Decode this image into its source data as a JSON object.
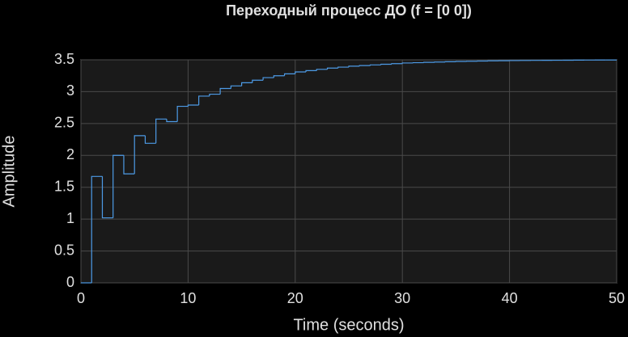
{
  "chart_data": {
    "type": "stairs",
    "title": "Переходный процесс ДО (f = [0 0])",
    "x_label": "Time (seconds)",
    "y_label": "Amplitude",
    "x": [
      0,
      1,
      2,
      3,
      4,
      5,
      6,
      7,
      8,
      9,
      10,
      11,
      12,
      13,
      14,
      15,
      16,
      17,
      18,
      19,
      20,
      21,
      22,
      23,
      24,
      25,
      26,
      27,
      28,
      29,
      30,
      31,
      32,
      33,
      34,
      35,
      36,
      37,
      38,
      39,
      40,
      41,
      42,
      43,
      44,
      45,
      46,
      47,
      48,
      49,
      50
    ],
    "series": [
      {
        "color": "#4d9be6",
        "values": [
          0,
          1.67,
          1.02,
          2.0,
          1.71,
          2.31,
          2.19,
          2.57,
          2.53,
          2.77,
          2.79,
          2.93,
          2.96,
          3.05,
          3.09,
          3.14,
          3.18,
          3.22,
          3.25,
          3.28,
          3.31,
          3.33,
          3.35,
          3.37,
          3.385,
          3.4,
          3.41,
          3.42,
          3.43,
          3.44,
          3.45,
          3.455,
          3.46,
          3.465,
          3.47,
          3.475,
          3.478,
          3.481,
          3.484,
          3.486,
          3.488,
          3.49,
          3.491,
          3.492,
          3.493,
          3.494,
          3.495,
          3.496,
          3.497,
          3.497,
          3.498
        ]
      }
    ],
    "xlim": [
      0,
      50
    ],
    "ylim": [
      0,
      3.5
    ],
    "xticks": [
      0,
      10,
      20,
      30,
      40,
      50
    ],
    "yticks": [
      0,
      0.5,
      1,
      1.5,
      2,
      2.5,
      3,
      3.5
    ],
    "grid": true
  }
}
